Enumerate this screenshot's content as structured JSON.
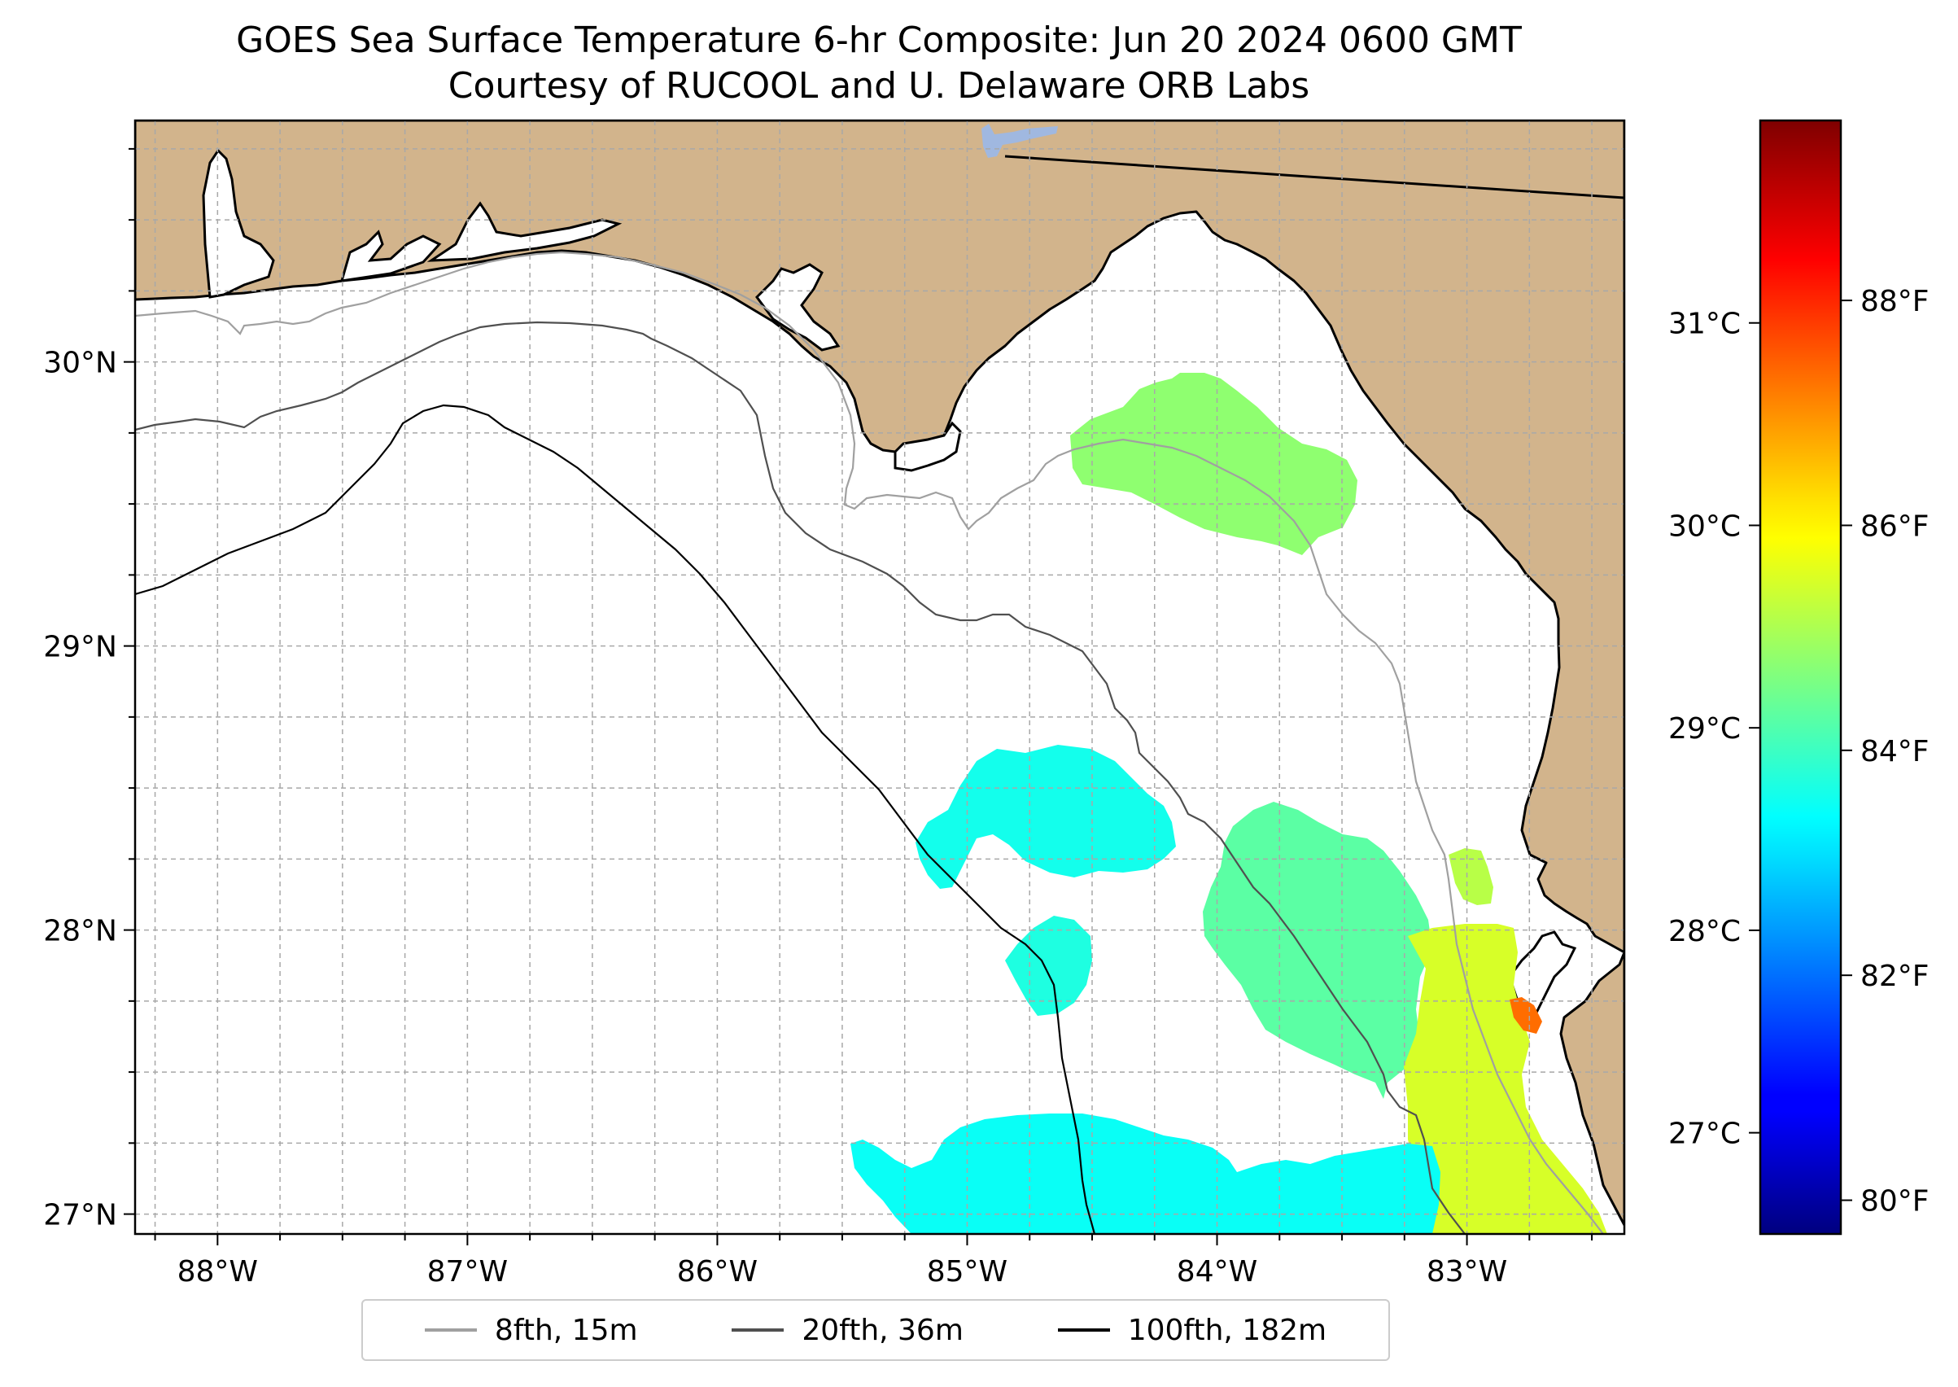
{
  "title": "GOES Sea Surface Temperature 6-hr Composite: Jun 20 2024 0600 GMT",
  "subtitle": "Courtesy of RUCOOL and U. Delaware ORB Labs",
  "map": {
    "lon_range": [
      -88.33,
      -82.37
    ],
    "lat_range": [
      26.93,
      30.85
    ],
    "lon_ticks": [
      {
        "lon": -88,
        "label": "88°W"
      },
      {
        "lon": -87,
        "label": "87°W"
      },
      {
        "lon": -86,
        "label": "86°W"
      },
      {
        "lon": -85,
        "label": "85°W"
      },
      {
        "lon": -84,
        "label": "84°W"
      },
      {
        "lon": -83,
        "label": "83°W"
      }
    ],
    "lat_ticks": [
      {
        "lat": 30,
        "label": "30°N"
      },
      {
        "lat": 29,
        "label": "29°N"
      },
      {
        "lat": 28,
        "label": "28°N"
      },
      {
        "lat": 27,
        "label": "27°N"
      }
    ],
    "colors": {
      "land": "#d2b48c",
      "ocean": "#ffffff",
      "coastline": "#000000",
      "gridlines": "#b0b0b0",
      "lake": "#a0b8e0"
    }
  },
  "colorbar": {
    "colormap": "jet",
    "celsius_ticks": [
      {
        "value": 27,
        "label": "27°C"
      },
      {
        "value": 28,
        "label": "28°C"
      },
      {
        "value": 29,
        "label": "29°C"
      },
      {
        "value": 30,
        "label": "30°C"
      },
      {
        "value": 31,
        "label": "31°C"
      }
    ],
    "fahrenheit_ticks": [
      {
        "value": 80,
        "label": "80°F"
      },
      {
        "value": 82,
        "label": "82°F"
      },
      {
        "value": 84,
        "label": "84°F"
      },
      {
        "value": 86,
        "label": "86°F"
      },
      {
        "value": 88,
        "label": "88°F"
      }
    ],
    "range_f": [
      79.7,
      89.6
    ]
  },
  "legend": [
    {
      "label": "8fth, 15m",
      "color": "#a0a0a0"
    },
    {
      "label": "20fth, 36m",
      "color": "#505050"
    },
    {
      "label": "100fth, 182m",
      "color": "#000000"
    }
  ],
  "sst_patches": [
    {
      "name": "big-bend-patch",
      "temp_f": 84.8
    },
    {
      "name": "mid-shelf-patch",
      "temp_f": 83.6
    },
    {
      "name": "small-offshore-patch",
      "temp_f": 83.7
    },
    {
      "name": "tampa-shelf-patch",
      "temp_f": 84.3
    },
    {
      "name": "tampa-nearshore-patch",
      "temp_f": 85.5
    },
    {
      "name": "tampa-bay-warm-spot",
      "temp_f": 87.3
    },
    {
      "name": "south-patch",
      "temp_f": 83.5
    },
    {
      "name": "anclote-patch",
      "temp_f": 85.2
    }
  ]
}
